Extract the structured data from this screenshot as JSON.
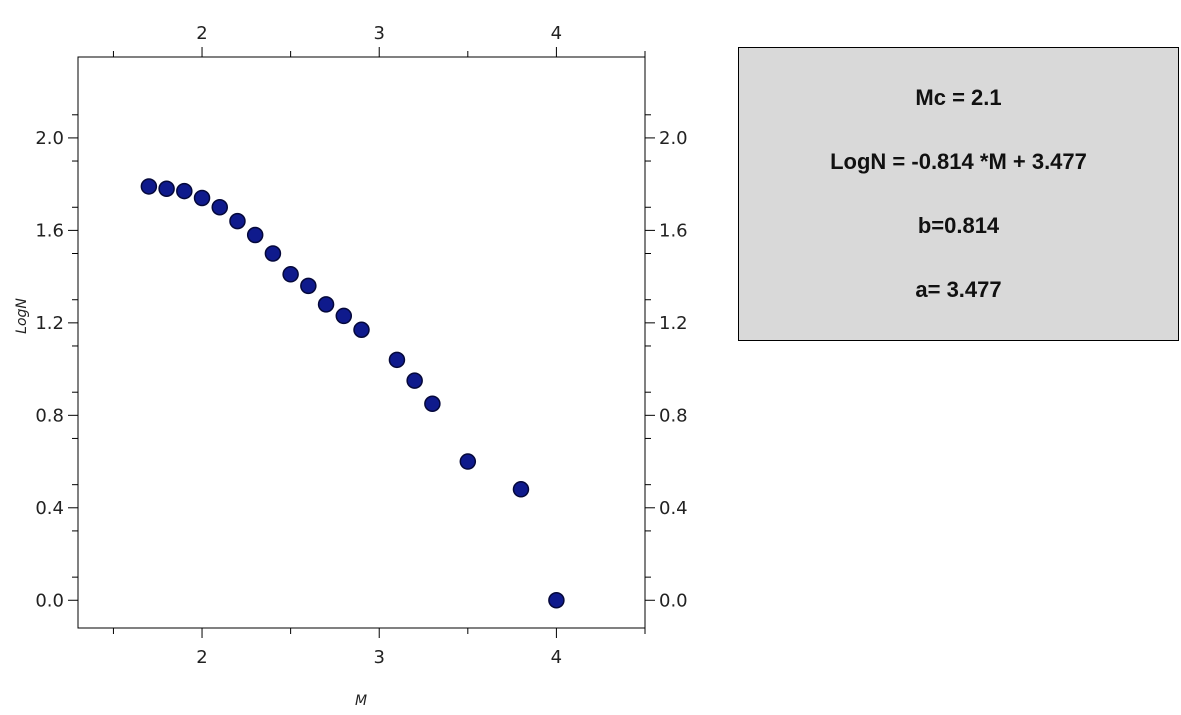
{
  "chart_data": {
    "type": "scatter",
    "title": "",
    "xlabel": "M",
    "ylabel": "LogN",
    "xlim": [
      1.3,
      4.5
    ],
    "ylim": [
      -0.12,
      2.35
    ],
    "x_ticks": [
      2,
      3,
      4
    ],
    "y_ticks": [
      0.0,
      0.4,
      0.8,
      1.2,
      1.6,
      2.0
    ],
    "x_tick_labels": [
      "2",
      "3",
      "4"
    ],
    "y_tick_labels": [
      "0.0",
      "0.4",
      "0.8",
      "1.2",
      "1.6",
      "2.0"
    ],
    "grid": false,
    "marker_color": "#0f1a8c",
    "series": [
      {
        "x": [
          1.7,
          1.8,
          1.9,
          2.0,
          2.1,
          2.2,
          2.3,
          2.4,
          2.5,
          2.6,
          2.7,
          2.8,
          2.9,
          3.1,
          3.2,
          3.3,
          3.5,
          3.8,
          4.0
        ],
        "y": [
          1.79,
          1.78,
          1.77,
          1.74,
          1.7,
          1.64,
          1.58,
          1.5,
          1.41,
          1.36,
          1.28,
          1.23,
          1.17,
          1.04,
          0.95,
          0.85,
          0.6,
          0.48,
          0.0
        ]
      }
    ]
  },
  "info_box": {
    "lines": [
      "Mc = 2.1",
      "LogN = -0.814 *M + 3.477",
      "b=0.814",
      "a= 3.477"
    ]
  }
}
